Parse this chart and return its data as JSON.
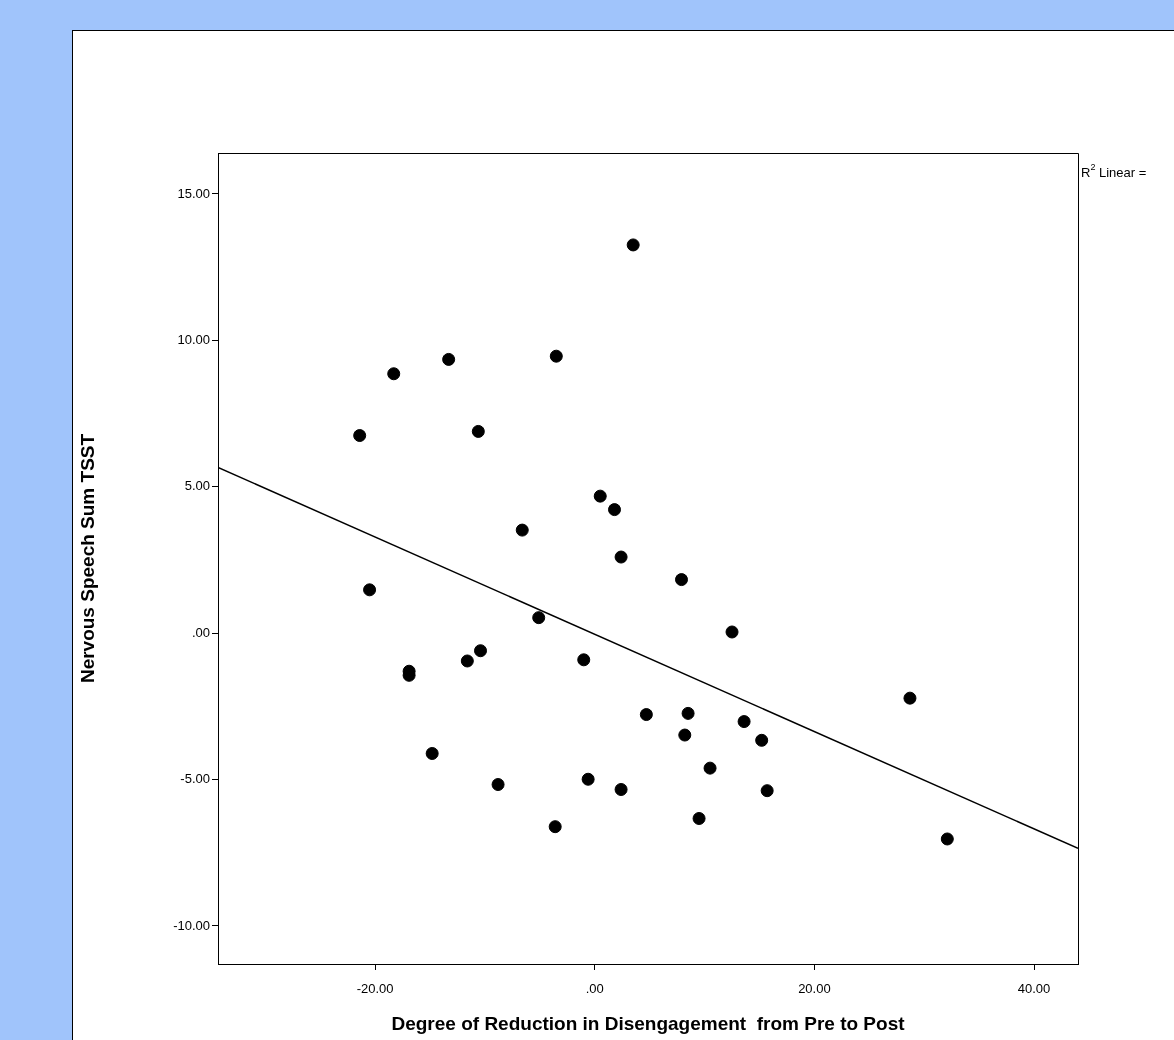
{
  "chart_data": {
    "type": "scatter",
    "xlabel": "Degree of Reduction in Disengagement  from Pre to Post",
    "ylabel": "Nervous Speech Sum TSST",
    "xlim": [
      -34.3,
      44
    ],
    "ylim": [
      -11.3,
      16.4
    ],
    "xticks": [
      {
        "value": -20,
        "label": "-20.00"
      },
      {
        "value": 0,
        "label": ".00"
      },
      {
        "value": 20,
        "label": "20.00"
      },
      {
        "value": 40,
        "label": "40.00"
      }
    ],
    "yticks": [
      {
        "value": -10,
        "label": "-10.00"
      },
      {
        "value": -5,
        "label": "-5.00"
      },
      {
        "value": 0,
        "label": ".00"
      },
      {
        "value": 5,
        "label": "5.00"
      },
      {
        "value": 10,
        "label": "10.00"
      },
      {
        "value": 15,
        "label": "15.00"
      }
    ],
    "annotations": [
      "R$^{2}$ Linear ="
    ],
    "series": [
      {
        "type": "scatter",
        "color": "#000000",
        "marker": "circle",
        "x": [
          3.5,
          -21.4,
          -18.3,
          -13.3,
          -3.5,
          -10.6,
          0.5,
          1.8,
          -6.6,
          2.4,
          -20.5,
          7.9,
          -5.1,
          12.5,
          -10.4,
          -11.6,
          -16.9,
          -16.9,
          -1.0,
          4.7,
          8.5,
          8.2,
          13.6,
          15.2,
          28.7,
          -14.8,
          10.5,
          -8.8,
          -0.6,
          2.4,
          15.7,
          -3.6,
          9.5,
          32.1
        ],
        "values": [
          13.26,
          6.75,
          8.86,
          9.35,
          9.46,
          6.89,
          4.68,
          4.22,
          3.52,
          2.6,
          1.48,
          1.83,
          0.53,
          0.04,
          -0.6,
          -0.95,
          -1.3,
          -1.44,
          -0.91,
          -2.78,
          -2.74,
          -3.48,
          -3.02,
          -3.66,
          -2.22,
          -4.11,
          -4.61,
          -5.17,
          -4.99,
          -5.34,
          -5.38,
          -6.61,
          -6.33,
          -7.03
        ]
      },
      {
        "type": "line",
        "color": "#000000",
        "marker": "none",
        "line_style": "solid",
        "x": [
          -34.3,
          44
        ],
        "values": [
          5.66,
          -7.35
        ]
      }
    ]
  }
}
